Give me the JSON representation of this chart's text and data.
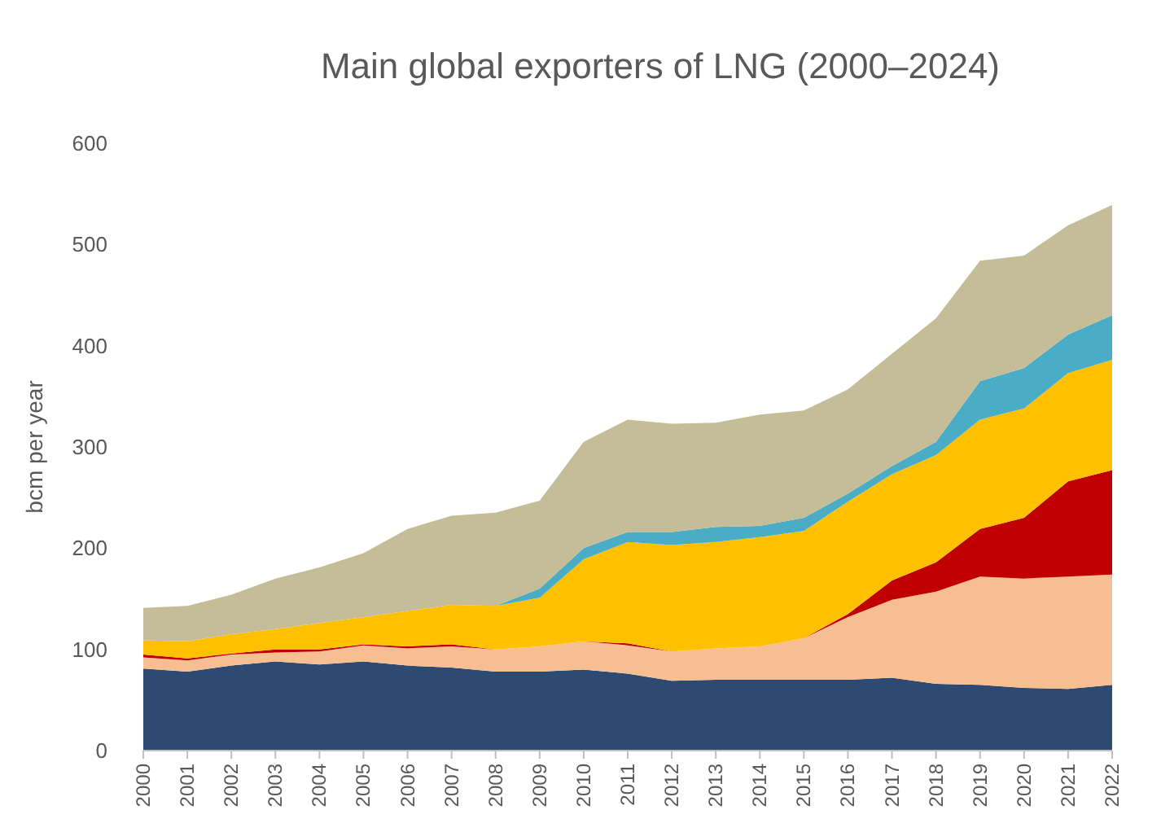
{
  "chart_data": {
    "type": "area",
    "stacked": true,
    "title": "Main global exporters of LNG (2000–2024)",
    "ylabel": "bcm per year",
    "categories": [
      "2000",
      "2001",
      "2002",
      "2003",
      "2004",
      "2005",
      "2006",
      "2007",
      "2008",
      "2009",
      "2010",
      "2011",
      "2012",
      "2013",
      "2014",
      "2015",
      "2016",
      "2017",
      "2018",
      "2019",
      "2020",
      "2021",
      "2022"
    ],
    "series": [
      {
        "color": "#2e4a70",
        "values": [
          81,
          78,
          84,
          88,
          85,
          88,
          84,
          82,
          78,
          78,
          80,
          76,
          69,
          70,
          70,
          70,
          70,
          72,
          66,
          65,
          62,
          61,
          65
        ]
      },
      {
        "color": "#f7bf91",
        "values": [
          11,
          11,
          11,
          9,
          13,
          16,
          17,
          21,
          22,
          25,
          28,
          28,
          29,
          31,
          33,
          41,
          62,
          77,
          91,
          107,
          108,
          111,
          109
        ]
      },
      {
        "color": "#c00000",
        "values": [
          3,
          2,
          1,
          3,
          2,
          1,
          2,
          2,
          0,
          0,
          0,
          2,
          0,
          0,
          0,
          0,
          3,
          19,
          29,
          47,
          60,
          94,
          103
        ]
      },
      {
        "color": "#ffc000",
        "values": [
          14,
          17,
          19,
          20,
          26,
          27,
          35,
          39,
          43,
          48,
          81,
          100,
          105,
          105,
          108,
          106,
          111,
          105,
          106,
          108,
          108,
          107,
          109
        ]
      },
      {
        "color": "#4bacc6",
        "values": [
          0,
          0,
          0,
          0,
          0,
          0,
          0,
          0,
          0,
          9,
          11,
          10,
          13,
          15,
          11,
          13,
          8,
          8,
          13,
          38,
          40,
          38,
          44
        ]
      },
      {
        "color": "#c4bd97",
        "values": [
          32,
          35,
          39,
          50,
          55,
          63,
          81,
          88,
          92,
          87,
          105,
          111,
          107,
          103,
          110,
          106,
          103,
          111,
          122,
          119,
          111,
          108,
          109
        ]
      }
    ],
    "ylim": [
      0,
      600
    ],
    "yticks": [
      0,
      100,
      200,
      300,
      400,
      500,
      600
    ]
  }
}
